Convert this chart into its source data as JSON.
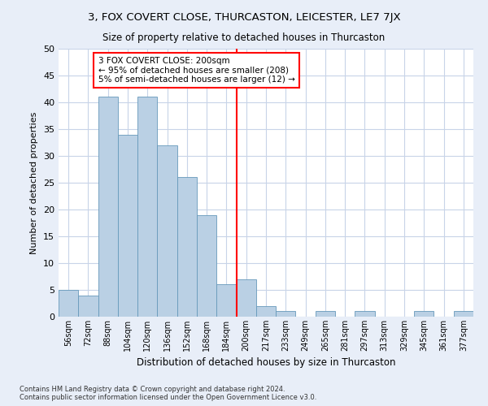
{
  "title": "3, FOX COVERT CLOSE, THURCASTON, LEICESTER, LE7 7JX",
  "subtitle": "Size of property relative to detached houses in Thurcaston",
  "xlabel": "Distribution of detached houses by size in Thurcaston",
  "ylabel": "Number of detached properties",
  "bar_color": "#bad0e4",
  "bar_edge_color": "#6699bb",
  "bar_categories": [
    "56sqm",
    "72sqm",
    "88sqm",
    "104sqm",
    "120sqm",
    "136sqm",
    "152sqm",
    "168sqm",
    "184sqm",
    "200sqm",
    "217sqm",
    "233sqm",
    "249sqm",
    "265sqm",
    "281sqm",
    "297sqm",
    "313sqm",
    "329sqm",
    "345sqm",
    "361sqm",
    "377sqm"
  ],
  "bar_values": [
    5,
    4,
    41,
    34,
    41,
    32,
    26,
    19,
    6,
    7,
    2,
    1,
    0,
    1,
    0,
    1,
    0,
    0,
    1,
    0,
    1
  ],
  "annotation_text_line1": "3 FOX COVERT CLOSE: 200sqm",
  "annotation_text_line2": "← 95% of detached houses are smaller (208)",
  "annotation_text_line3": "5% of semi-detached houses are larger (12) →",
  "ylim": [
    0,
    50
  ],
  "yticks": [
    0,
    5,
    10,
    15,
    20,
    25,
    30,
    35,
    40,
    45,
    50
  ],
  "footnote1": "Contains HM Land Registry data © Crown copyright and database right 2024.",
  "footnote2": "Contains public sector information licensed under the Open Government Licence v3.0.",
  "fig_bg_color": "#e8eef8",
  "plot_bg_color": "#ffffff"
}
